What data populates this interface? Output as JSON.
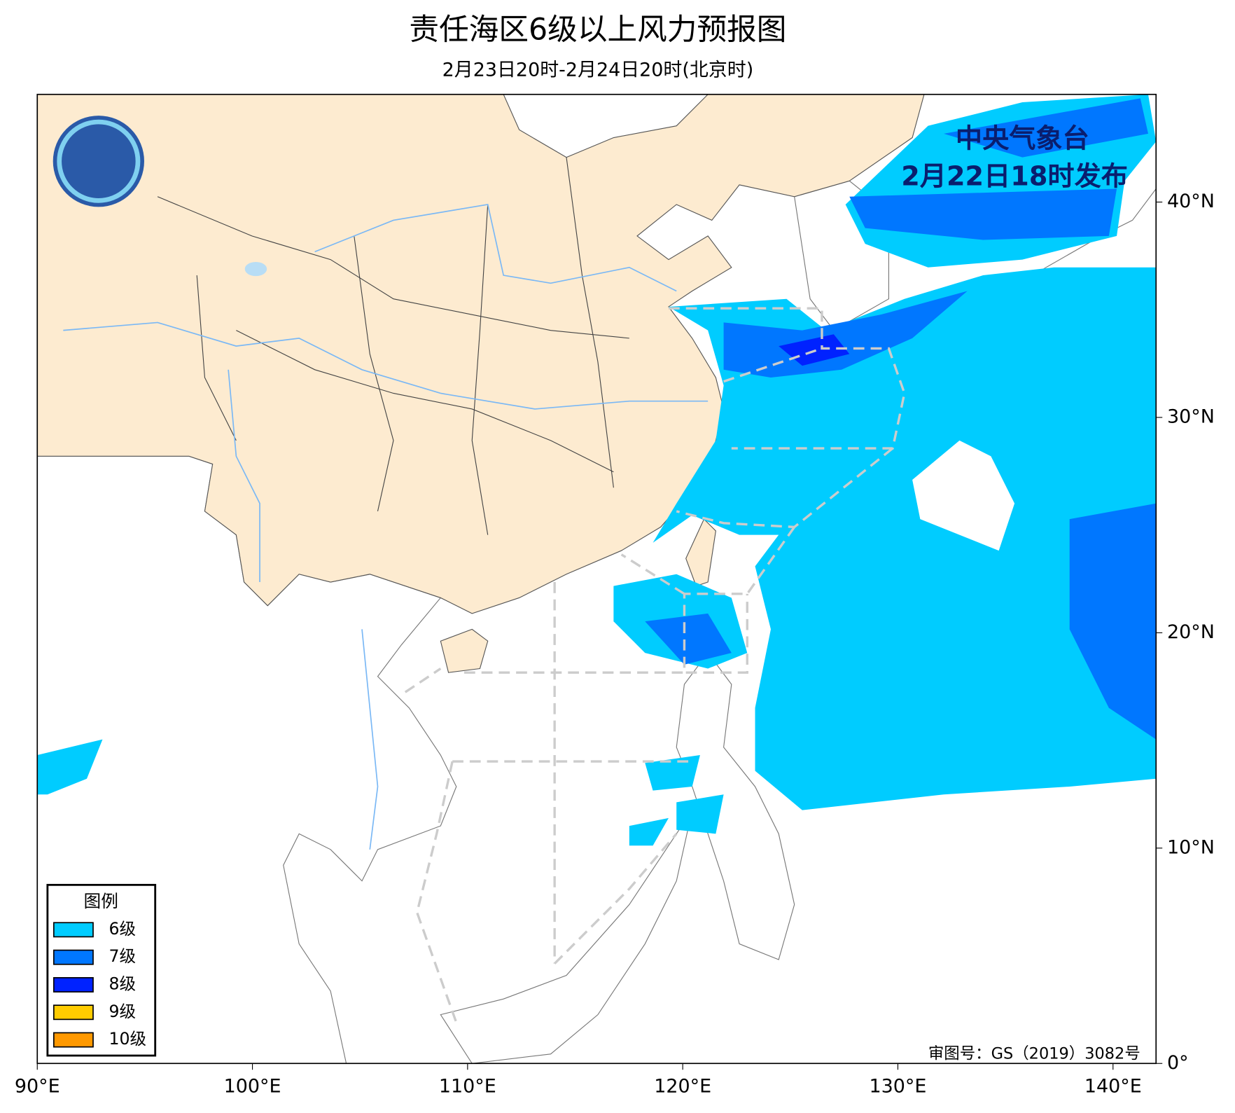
{
  "title": "责任海区6级以上风力预报图",
  "subtitle": "2月23日20时-2月24日20时(北京时)",
  "issuer": "中央气象台",
  "issued": "2月22日18时发布",
  "map": {
    "xlim": [
      90,
      142
    ],
    "ylim": [
      0,
      45
    ],
    "xticks": [
      {
        "value": 90,
        "label": "90°E"
      },
      {
        "value": 100,
        "label": "100°E"
      },
      {
        "value": 110,
        "label": "110°E"
      },
      {
        "value": 120,
        "label": "120°E"
      },
      {
        "value": 130,
        "label": "130°E"
      },
      {
        "value": 140,
        "label": "140°E"
      }
    ],
    "yticks": [
      {
        "value": 0,
        "label": "0°"
      },
      {
        "value": 10,
        "label": "10°N"
      },
      {
        "value": 20,
        "label": "20°N"
      },
      {
        "value": 30,
        "label": "30°N"
      },
      {
        "value": 40,
        "label": "40°N"
      }
    ]
  },
  "legend": {
    "title": "图例",
    "items": [
      {
        "label": "6级",
        "color": "#00ccff"
      },
      {
        "label": "7级",
        "color": "#0077ff"
      },
      {
        "label": "8级",
        "color": "#0022ff"
      },
      {
        "label": "9级",
        "color": "#ffcc00"
      },
      {
        "label": "10级",
        "color": "#ff9900"
      }
    ]
  },
  "approval": "审图号：GS（2019）3082号"
}
